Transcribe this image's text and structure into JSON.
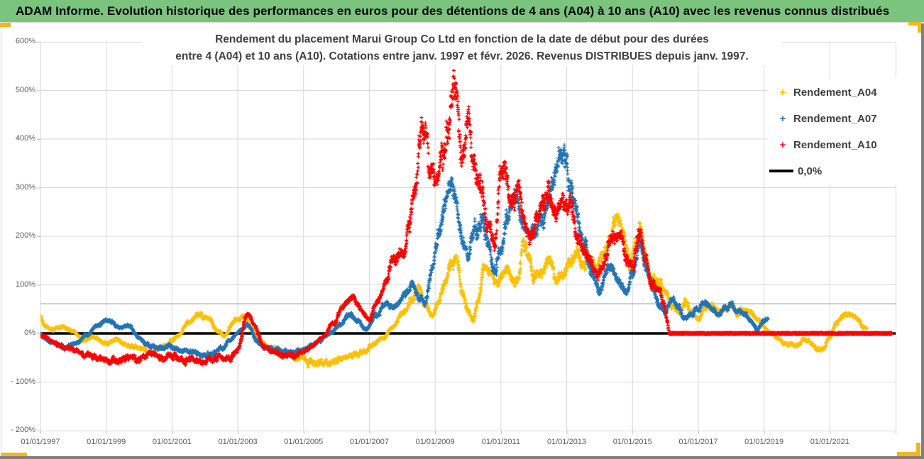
{
  "header": {
    "title": "ADAM Informe. Evolution historique des performances en euros pour des détentions de 4 ans (A04) à 10 ans (A10) avec les revenus connus distribués",
    "bg_color": "#7ac47e"
  },
  "chart_data": {
    "type": "scatter",
    "title_lines": [
      "Rendement du placement Marui Group Co Ltd en fonction de la date de début pour des durées",
      "entre 4 (A04) et 10 ans (A10). Cotations entre janv. 1997 et févr. 2026. Revenus DISTRIBUES depuis janv. 1997."
    ],
    "grid": true,
    "legend_position": "right",
    "xlabel": "",
    "ylabel": "",
    "x_range_years": [
      1997.0,
      2023.0
    ],
    "ylim_pct": [
      -200,
      600
    ],
    "x_tick_years": [
      1997,
      1999,
      2001,
      2003,
      2005,
      2007,
      2009,
      2011,
      2013,
      2015,
      2017,
      2019,
      2021
    ],
    "x_tick_labels": [
      "01/01/1997",
      "01/01/1999",
      "01/01/2001",
      "01/01/2003",
      "01/01/2005",
      "01/01/2007",
      "01/01/2009",
      "01/01/2011",
      "01/01/2013",
      "01/01/2015",
      "01/01/2017",
      "01/01/2019",
      "01/01/2021"
    ],
    "y_tick_values": [
      600,
      500,
      400,
      300,
      200,
      100,
      0,
      -100,
      -200
    ],
    "y_tick_labels": [
      "600%",
      "500%",
      "400%",
      "300%",
      "200%",
      "100%",
      "0%",
      "- 100%",
      "- 200%"
    ],
    "extra_gridline_pct": 61,
    "zero_line": {
      "label": "0,0%",
      "value_pct": 0,
      "color": "#000000"
    },
    "legend": {
      "entries": [
        {
          "label": "Rendement_A04",
          "symbol": "+",
          "marker": "plus",
          "color": "#FFC000"
        },
        {
          "label": "Rendement_A07",
          "symbol": "+",
          "marker": "plus",
          "color": "#2374B5"
        },
        {
          "label": "Rendement_A10",
          "symbol": "+",
          "marker": "plus",
          "color": "#FE0000"
        },
        {
          "label": "0,0%",
          "symbol": "",
          "marker": "line",
          "color": "#000000"
        }
      ]
    },
    "series": [
      {
        "name": "Rendement_A04",
        "color": "#FFC000",
        "marker": "plus",
        "seed": 11,
        "start_year": 1997.0,
        "end_year": 2022.12,
        "anchors": [
          [
            1997.0,
            35
          ],
          [
            1997.15,
            12
          ],
          [
            1997.4,
            8
          ],
          [
            1997.7,
            15
          ],
          [
            1998.0,
            5
          ],
          [
            1998.3,
            -15
          ],
          [
            1998.6,
            -8
          ],
          [
            1999.0,
            -20
          ],
          [
            1999.3,
            -12
          ],
          [
            1999.6,
            -25
          ],
          [
            2000.0,
            -30
          ],
          [
            2000.3,
            -38
          ],
          [
            2000.6,
            -30
          ],
          [
            2000.9,
            -20
          ],
          [
            2001.2,
            -5
          ],
          [
            2001.5,
            25
          ],
          [
            2001.8,
            42
          ],
          [
            2002.1,
            30
          ],
          [
            2002.4,
            5
          ],
          [
            2002.6,
            -5
          ],
          [
            2002.9,
            25
          ],
          [
            2003.2,
            35
          ],
          [
            2003.4,
            10
          ],
          [
            2003.7,
            -15
          ],
          [
            2004.0,
            -30
          ],
          [
            2004.4,
            -40
          ],
          [
            2004.8,
            -50
          ],
          [
            2005.2,
            -60
          ],
          [
            2005.6,
            -62
          ],
          [
            2006.0,
            -55
          ],
          [
            2006.4,
            -45
          ],
          [
            2006.8,
            -38
          ],
          [
            2007.1,
            -25
          ],
          [
            2007.4,
            -10
          ],
          [
            2007.7,
            15
          ],
          [
            2008.0,
            40
          ],
          [
            2008.3,
            70
          ],
          [
            2008.5,
            90
          ],
          [
            2008.7,
            60
          ],
          [
            2008.9,
            35
          ],
          [
            2009.1,
            60
          ],
          [
            2009.3,
            105
          ],
          [
            2009.5,
            150
          ],
          [
            2009.65,
            160
          ],
          [
            2009.8,
            95
          ],
          [
            2010.0,
            45
          ],
          [
            2010.15,
            25
          ],
          [
            2010.3,
            65
          ],
          [
            2010.5,
            140
          ],
          [
            2010.7,
            120
          ],
          [
            2010.9,
            100
          ],
          [
            2011.1,
            130
          ],
          [
            2011.3,
            125
          ],
          [
            2011.5,
            105
          ],
          [
            2011.7,
            185
          ],
          [
            2011.85,
            160
          ],
          [
            2012.0,
            120
          ],
          [
            2012.2,
            125
          ],
          [
            2012.5,
            155
          ],
          [
            2012.7,
            110
          ],
          [
            2012.9,
            115
          ],
          [
            2013.1,
            150
          ],
          [
            2013.3,
            165
          ],
          [
            2013.5,
            140
          ],
          [
            2013.7,
            160
          ],
          [
            2013.9,
            135
          ],
          [
            2014.1,
            160
          ],
          [
            2014.3,
            200
          ],
          [
            2014.55,
            245
          ],
          [
            2014.7,
            220
          ],
          [
            2014.9,
            150
          ],
          [
            2015.1,
            175
          ],
          [
            2015.25,
            210
          ],
          [
            2015.4,
            150
          ],
          [
            2015.6,
            120
          ],
          [
            2015.8,
            105
          ],
          [
            2016.0,
            90
          ],
          [
            2016.2,
            55
          ],
          [
            2016.4,
            42
          ],
          [
            2016.6,
            65
          ],
          [
            2016.8,
            45
          ],
          [
            2017.0,
            28
          ],
          [
            2017.2,
            50
          ],
          [
            2017.4,
            60
          ],
          [
            2017.6,
            45
          ],
          [
            2017.8,
            50
          ],
          [
            2018.0,
            58
          ],
          [
            2018.2,
            40
          ],
          [
            2018.4,
            50
          ],
          [
            2018.6,
            45
          ],
          [
            2018.8,
            25
          ],
          [
            2019.0,
            12
          ],
          [
            2019.2,
            0
          ],
          [
            2019.4,
            -10
          ],
          [
            2019.6,
            -18
          ],
          [
            2019.8,
            -22
          ],
          [
            2020.0,
            -25
          ],
          [
            2020.2,
            -12
          ],
          [
            2020.4,
            -18
          ],
          [
            2020.6,
            -32
          ],
          [
            2020.8,
            -28
          ],
          [
            2021.0,
            -10
          ],
          [
            2021.2,
            20
          ],
          [
            2021.4,
            35
          ],
          [
            2021.6,
            40
          ],
          [
            2021.8,
            30
          ],
          [
            2022.0,
            15
          ],
          [
            2022.12,
            10
          ]
        ]
      },
      {
        "name": "Rendement_A07",
        "color": "#2374B5",
        "marker": "plus",
        "seed": 22,
        "start_year": 1997.0,
        "end_year": 2019.12,
        "anchors": [
          [
            1997.0,
            0
          ],
          [
            1997.3,
            -18
          ],
          [
            1997.7,
            -30
          ],
          [
            1998.0,
            -25
          ],
          [
            1998.4,
            -5
          ],
          [
            1998.8,
            22
          ],
          [
            1999.1,
            28
          ],
          [
            1999.4,
            12
          ],
          [
            1999.7,
            15
          ],
          [
            2000.0,
            -10
          ],
          [
            2000.3,
            -25
          ],
          [
            2000.6,
            -30
          ],
          [
            2001.0,
            -28
          ],
          [
            2001.4,
            -38
          ],
          [
            2001.8,
            -42
          ],
          [
            2002.2,
            -45
          ],
          [
            2002.5,
            -30
          ],
          [
            2002.8,
            -12
          ],
          [
            2003.1,
            8
          ],
          [
            2003.3,
            20
          ],
          [
            2003.6,
            -18
          ],
          [
            2003.9,
            -30
          ],
          [
            2004.3,
            -35
          ],
          [
            2004.7,
            -40
          ],
          [
            2005.1,
            -30
          ],
          [
            2005.5,
            -15
          ],
          [
            2005.8,
            0
          ],
          [
            2006.1,
            18
          ],
          [
            2006.4,
            40
          ],
          [
            2006.6,
            28
          ],
          [
            2006.9,
            10
          ],
          [
            2007.2,
            35
          ],
          [
            2007.5,
            60
          ],
          [
            2007.8,
            55
          ],
          [
            2008.1,
            80
          ],
          [
            2008.3,
            100
          ],
          [
            2008.5,
            75
          ],
          [
            2008.7,
            65
          ],
          [
            2008.9,
            130
          ],
          [
            2009.1,
            200
          ],
          [
            2009.3,
            260
          ],
          [
            2009.45,
            310
          ],
          [
            2009.6,
            280
          ],
          [
            2009.8,
            205
          ],
          [
            2010.0,
            160
          ],
          [
            2010.2,
            210
          ],
          [
            2010.4,
            240
          ],
          [
            2010.6,
            180
          ],
          [
            2010.8,
            135
          ],
          [
            2011.0,
            170
          ],
          [
            2011.2,
            240
          ],
          [
            2011.4,
            290
          ],
          [
            2011.6,
            250
          ],
          [
            2011.8,
            215
          ],
          [
            2012.0,
            200
          ],
          [
            2012.2,
            240
          ],
          [
            2012.4,
            265
          ],
          [
            2012.6,
            300
          ],
          [
            2012.8,
            355
          ],
          [
            2012.95,
            360
          ],
          [
            2013.1,
            300
          ],
          [
            2013.3,
            245
          ],
          [
            2013.5,
            190
          ],
          [
            2013.8,
            120
          ],
          [
            2014.0,
            85
          ],
          [
            2014.3,
            130
          ],
          [
            2014.6,
            110
          ],
          [
            2014.8,
            80
          ],
          [
            2015.0,
            120
          ],
          [
            2015.2,
            190
          ],
          [
            2015.4,
            140
          ],
          [
            2015.6,
            95
          ],
          [
            2015.8,
            60
          ],
          [
            2016.0,
            45
          ],
          [
            2016.2,
            70
          ],
          [
            2016.4,
            55
          ],
          [
            2016.6,
            30
          ],
          [
            2016.8,
            40
          ],
          [
            2017.0,
            50
          ],
          [
            2017.2,
            65
          ],
          [
            2017.4,
            55
          ],
          [
            2017.6,
            40
          ],
          [
            2017.8,
            50
          ],
          [
            2018.0,
            55
          ],
          [
            2018.2,
            45
          ],
          [
            2018.4,
            40
          ],
          [
            2018.6,
            25
          ],
          [
            2018.8,
            10
          ],
          [
            2019.0,
            25
          ],
          [
            2019.12,
            30
          ]
        ]
      },
      {
        "name": "Rendement_A10",
        "color": "#FE0000",
        "marker": "plus",
        "seed": 33,
        "start_year": 1997.0,
        "end_year": 2016.1,
        "flat_zero_from": 2016.12,
        "flat_zero_to": 2022.88,
        "anchors": [
          [
            1997.0,
            -5
          ],
          [
            1997.3,
            -15
          ],
          [
            1997.8,
            -30
          ],
          [
            1998.3,
            -42
          ],
          [
            1998.8,
            -50
          ],
          [
            1999.2,
            -57
          ],
          [
            1999.6,
            -50
          ],
          [
            2000.0,
            -52
          ],
          [
            2000.4,
            -42
          ],
          [
            2000.7,
            -52
          ],
          [
            2001.1,
            -48
          ],
          [
            2001.5,
            -55
          ],
          [
            2002.0,
            -58
          ],
          [
            2002.4,
            -52
          ],
          [
            2002.8,
            -48
          ],
          [
            2003.0,
            -35
          ],
          [
            2003.3,
            42
          ],
          [
            2003.5,
            18
          ],
          [
            2003.8,
            -28
          ],
          [
            2004.2,
            -42
          ],
          [
            2004.6,
            -48
          ],
          [
            2005.0,
            -40
          ],
          [
            2005.3,
            -25
          ],
          [
            2005.6,
            -5
          ],
          [
            2005.9,
            20
          ],
          [
            2006.2,
            55
          ],
          [
            2006.5,
            75
          ],
          [
            2006.7,
            50
          ],
          [
            2007.0,
            28
          ],
          [
            2007.2,
            60
          ],
          [
            2007.5,
            100
          ],
          [
            2007.7,
            150
          ],
          [
            2008.0,
            160
          ],
          [
            2008.2,
            230
          ],
          [
            2008.4,
            300
          ],
          [
            2008.55,
            395
          ],
          [
            2008.7,
            420
          ],
          [
            2008.85,
            330
          ],
          [
            2009.0,
            300
          ],
          [
            2009.2,
            360
          ],
          [
            2009.4,
            420
          ],
          [
            2009.55,
            530
          ],
          [
            2009.65,
            480
          ],
          [
            2009.8,
            360
          ],
          [
            2010.0,
            440
          ],
          [
            2010.15,
            380
          ],
          [
            2010.35,
            300
          ],
          [
            2010.6,
            230
          ],
          [
            2010.8,
            180
          ],
          [
            2011.0,
            330
          ],
          [
            2011.1,
            345
          ],
          [
            2011.3,
            270
          ],
          [
            2011.5,
            300
          ],
          [
            2011.7,
            230
          ],
          [
            2011.9,
            195
          ],
          [
            2012.1,
            235
          ],
          [
            2012.3,
            270
          ],
          [
            2012.5,
            295
          ],
          [
            2012.7,
            245
          ],
          [
            2012.9,
            270
          ],
          [
            2013.1,
            255
          ],
          [
            2013.3,
            200
          ],
          [
            2013.6,
            160
          ],
          [
            2013.9,
            125
          ],
          [
            2014.1,
            140
          ],
          [
            2014.4,
            195
          ],
          [
            2014.6,
            205
          ],
          [
            2014.8,
            160
          ],
          [
            2015.0,
            140
          ],
          [
            2015.2,
            215
          ],
          [
            2015.4,
            150
          ],
          [
            2015.6,
            100
          ],
          [
            2015.8,
            95
          ],
          [
            2015.95,
            60
          ],
          [
            2016.05,
            30
          ],
          [
            2016.1,
            10
          ]
        ]
      }
    ]
  },
  "accents": {
    "banner_green": "#7ac47e",
    "chart_border_gold": "#f0b81e",
    "gridline": "#d9d9d9",
    "axis_text": "#595959",
    "title_text": "#3f3f3f"
  }
}
